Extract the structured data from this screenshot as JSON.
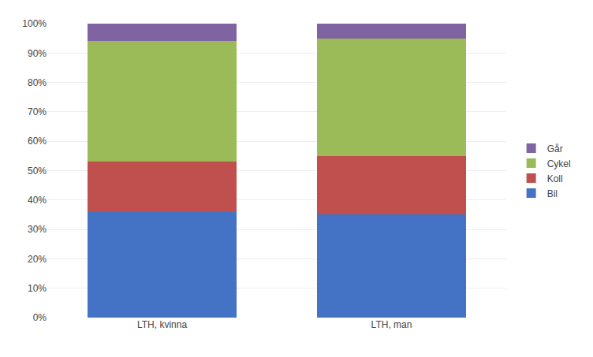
{
  "chart_data": {
    "type": "bar",
    "stacked": true,
    "categories": [
      "LTH, kvinna",
      "LTH, man"
    ],
    "series": [
      {
        "name": "Bil",
        "color": "#4472C4",
        "values": [
          0.36,
          0.35
        ]
      },
      {
        "name": "Koll",
        "color": "#C0504D",
        "values": [
          0.17,
          0.2
        ]
      },
      {
        "name": "Cykel",
        "color": "#9BBB59",
        "values": [
          0.41,
          0.4
        ]
      },
      {
        "name": "Går",
        "color": "#8064A2",
        "values": [
          0.06,
          0.05
        ]
      }
    ],
    "ylim": [
      0,
      1.0
    ],
    "yticks": [
      {
        "value": 0.0,
        "label": "0%"
      },
      {
        "value": 0.1,
        "label": "10%"
      },
      {
        "value": 0.2,
        "label": "20%"
      },
      {
        "value": 0.3,
        "label": "30%"
      },
      {
        "value": 0.4,
        "label": "40%"
      },
      {
        "value": 0.5,
        "label": "50%"
      },
      {
        "value": 0.6,
        "label": "60%"
      },
      {
        "value": 0.7,
        "label": "70%"
      },
      {
        "value": 0.8,
        "label": "80%"
      },
      {
        "value": 0.9,
        "label": "90%"
      },
      {
        "value": 1.0,
        "label": "100%"
      }
    ],
    "grid": true,
    "legend": "right"
  }
}
